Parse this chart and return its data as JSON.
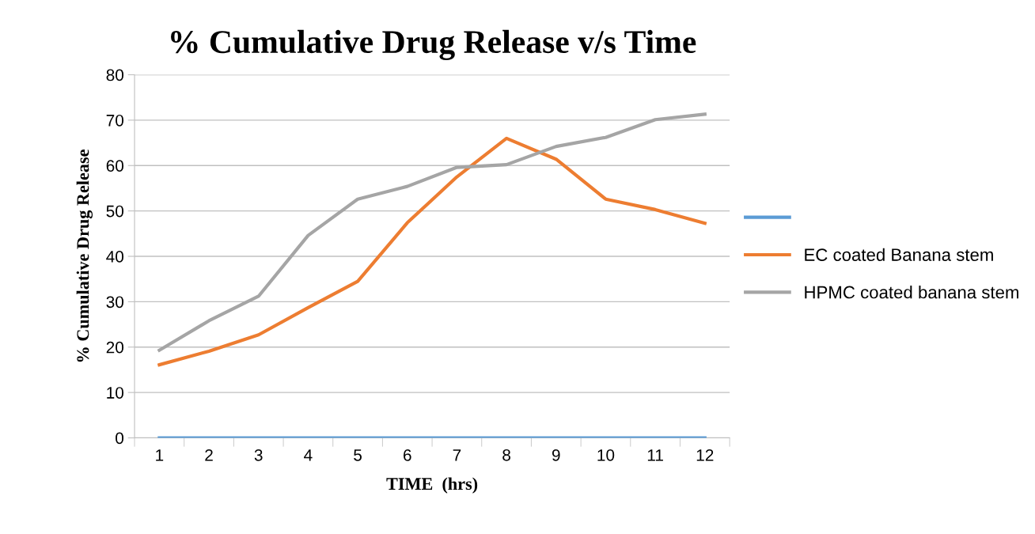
{
  "chart_data": {
    "type": "line",
    "title": "% Cumulative Drug Release v/s Time",
    "xlabel": "TIME  (hrs)",
    "ylabel": "% Cumulative Drug Release",
    "categories": [
      "1",
      "2",
      "3",
      "4",
      "5",
      "6",
      "7",
      "8",
      "9",
      "10",
      "11",
      "12"
    ],
    "series": [
      {
        "color": "#5b9bd5",
        "values": [
          0,
          0,
          0,
          0,
          0,
          0,
          0,
          0,
          0,
          0,
          0,
          0
        ]
      },
      {
        "name": "EC coated Banana stem",
        "color": "#ed7d31",
        "values": [
          16.1,
          19.1,
          22.7,
          28.7,
          34.5,
          47.4,
          57.5,
          66.0,
          61.4,
          52.6,
          50.3,
          47.3
        ]
      },
      {
        "name": "HPMC coated banana stem",
        "color": "#a5a5a5",
        "values": [
          19.3,
          25.8,
          31.2,
          44.6,
          52.6,
          55.4,
          59.6,
          60.2,
          64.2,
          66.2,
          70.1,
          71.3
        ]
      }
    ],
    "ylim": [
      0,
      80
    ],
    "yticks": [
      0,
      10,
      20,
      30,
      40,
      50,
      60,
      70,
      80
    ],
    "grid": "y",
    "legend": "right",
    "marker": "none",
    "line_style": "solid"
  }
}
